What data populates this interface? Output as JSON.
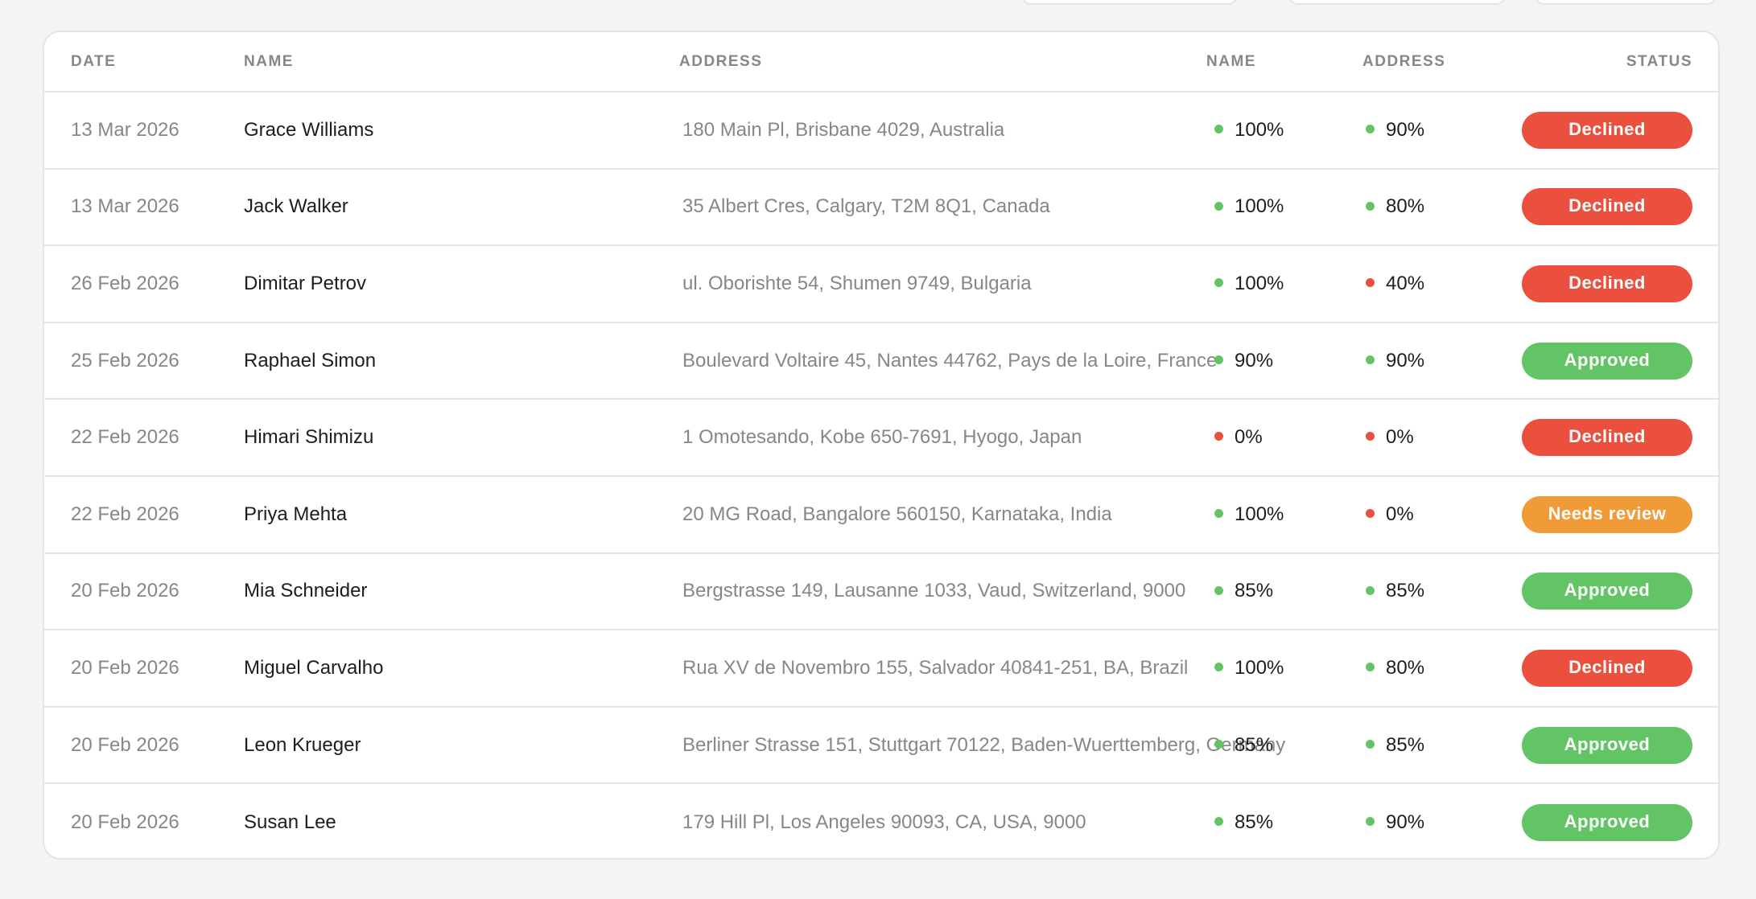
{
  "headers": {
    "date": "DATE",
    "name": "NAME",
    "address": "ADDRESS",
    "name_match": "NAME",
    "address_match": "ADDRESS",
    "status": "STATUS"
  },
  "colors": {
    "green": "#63c466",
    "red": "#eb4f3d",
    "orange": "#f19a38"
  },
  "rows": [
    {
      "date": "13 Mar 2026",
      "name": "Grace Williams",
      "address": "180 Main Pl, Brisbane 4029, Australia",
      "name_match": "100%",
      "name_color": "green",
      "address_match": "90%",
      "address_color": "green",
      "status": "Declined",
      "status_color": "red"
    },
    {
      "date": "13 Mar 2026",
      "name": "Jack Walker",
      "address": "35 Albert Cres, Calgary, T2M 8Q1, Canada",
      "name_match": "100%",
      "name_color": "green",
      "address_match": "80%",
      "address_color": "green",
      "status": "Declined",
      "status_color": "red"
    },
    {
      "date": "26 Feb 2026",
      "name": "Dimitar Petrov",
      "address": "ul. Oborishte 54, Shumen 9749, Bulgaria",
      "name_match": "100%",
      "name_color": "green",
      "address_match": "40%",
      "address_color": "red",
      "status": "Declined",
      "status_color": "red"
    },
    {
      "date": "25 Feb 2026",
      "name": "Raphael Simon",
      "address": "Boulevard Voltaire 45, Nantes 44762, Pays de la Loire, France",
      "name_match": "90%",
      "name_color": "green",
      "address_match": "90%",
      "address_color": "green",
      "status": "Approved",
      "status_color": "green"
    },
    {
      "date": "22 Feb 2026",
      "name": "Himari Shimizu",
      "address": "1 Omotesando, Kobe 650-7691, Hyogo, Japan",
      "name_match": "0%",
      "name_color": "red",
      "address_match": "0%",
      "address_color": "red",
      "status": "Declined",
      "status_color": "red"
    },
    {
      "date": "22 Feb 2026",
      "name": "Priya Mehta",
      "address": "20 MG Road, Bangalore 560150, Karnataka, India",
      "name_match": "100%",
      "name_color": "green",
      "address_match": "0%",
      "address_color": "red",
      "status": "Needs review",
      "status_color": "orange"
    },
    {
      "date": "20 Feb 2026",
      "name": "Mia Schneider",
      "address": "Bergstrasse 149, Lausanne 1033, Vaud, Switzerland, 9000",
      "name_match": "85%",
      "name_color": "green",
      "address_match": "85%",
      "address_color": "green",
      "status": "Approved",
      "status_color": "green"
    },
    {
      "date": "20 Feb 2026",
      "name": "Miguel Carvalho",
      "address": "Rua XV de Novembro 155, Salvador 40841-251, BA, Brazil",
      "name_match": "100%",
      "name_color": "green",
      "address_match": "80%",
      "address_color": "green",
      "status": "Declined",
      "status_color": "red"
    },
    {
      "date": "20 Feb 2026",
      "name": "Leon Krueger",
      "address": "Berliner Strasse 151, Stuttgart 70122, Baden-Wuerttemberg, Germany",
      "name_match": "85%",
      "name_color": "green",
      "address_match": "85%",
      "address_color": "green",
      "status": "Approved",
      "status_color": "green"
    },
    {
      "date": "20 Feb 2026",
      "name": "Susan Lee",
      "address": "179 Hill Pl, Los Angeles 90093, CA, USA, 9000",
      "name_match": "85%",
      "name_color": "green",
      "address_match": "90%",
      "address_color": "green",
      "status": "Approved",
      "status_color": "green"
    }
  ]
}
